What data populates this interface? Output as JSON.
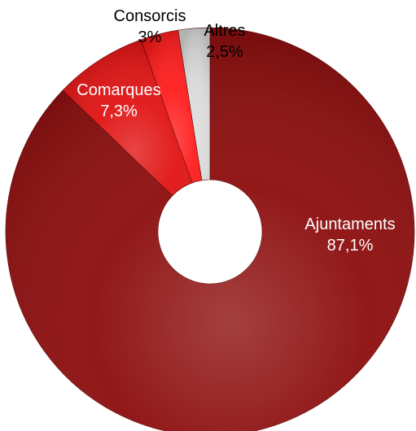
{
  "chart_data": {
    "type": "pie",
    "variant": "donut",
    "slices": [
      {
        "label": "Ajuntaments",
        "value": 87.1,
        "value_label": "87,1%",
        "color": "#8b0a0a",
        "label_color": "#ffffff"
      },
      {
        "label": "Comarques",
        "value": 7.3,
        "value_label": "7,3%",
        "color": "#e01010",
        "label_color": "#ffffff"
      },
      {
        "label": "Consorcis",
        "value": 3,
        "value_label": "3%",
        "color": "#ff1a1a",
        "label_color": "#000000"
      },
      {
        "label": "Altres",
        "value": 2.5,
        "value_label": "2,5%",
        "color": "#d9d9d9",
        "label_color": "#000000"
      }
    ]
  }
}
